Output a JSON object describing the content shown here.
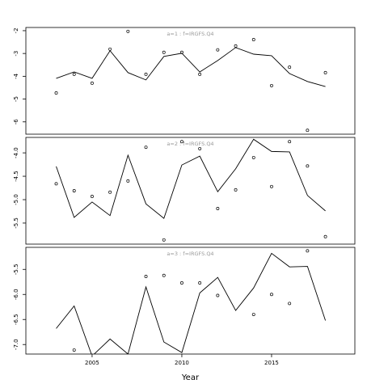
{
  "chart_data": [
    {
      "type": "line",
      "title": "a=1 : f=IRGFS.Q4",
      "x": [
        2003,
        2004,
        2005,
        2006,
        2007,
        2008,
        2009,
        2010,
        2011,
        2012,
        2013,
        2014,
        2015,
        2016,
        2017,
        2018
      ],
      "series": [
        {
          "style": "line",
          "color": "#000000",
          "values": [
            -4.09,
            -3.81,
            -4.09,
            -2.88,
            -3.84,
            -4.16,
            -3.13,
            -2.99,
            -3.81,
            -3.31,
            -2.74,
            -3.03,
            -3.1,
            -3.88,
            -4.23,
            -4.45
          ]
        },
        {
          "style": "points",
          "color": "#000000",
          "values": [
            -4.73,
            -3.91,
            -4.3,
            -2.81,
            -2.03,
            -3.91,
            -2.95,
            -2.95,
            -3.91,
            -2.84,
            -2.67,
            -2.39,
            -4.41,
            -3.6,
            -6.37,
            -3.84
          ]
        }
      ],
      "xlim": [
        2001.31,
        2019.64
      ],
      "ylim": [
        -6.54,
        -1.86
      ],
      "yticks": [
        -2,
        -3,
        -4,
        -5,
        -6
      ]
    },
    {
      "type": "line",
      "title": "a=2 : f=IRGFS.Q4",
      "x": [
        2003,
        2004,
        2005,
        2006,
        2007,
        2008,
        2009,
        2010,
        2011,
        2012,
        2013,
        2014,
        2015,
        2016,
        2017,
        2018
      ],
      "series": [
        {
          "style": "line",
          "color": "#000000",
          "values": [
            -4.29,
            -5.38,
            -5.05,
            -5.34,
            -4.05,
            -5.09,
            -5.4,
            -4.26,
            -4.07,
            -4.83,
            -4.34,
            -3.71,
            -3.97,
            -3.98,
            -4.91,
            -5.24
          ]
        },
        {
          "style": "points",
          "color": "#000000",
          "values": [
            -4.66,
            -4.81,
            -4.93,
            -4.84,
            -4.6,
            -3.88,
            -5.86,
            -3.76,
            -3.91,
            -5.19,
            -4.79,
            -4.1,
            -4.72,
            -3.76,
            -4.28,
            -5.79
          ]
        }
      ],
      "xlim": [
        2001.31,
        2019.64
      ],
      "ylim": [
        -5.95,
        -3.67
      ],
      "yticks": [
        {
          "value": -4,
          "label": "-4.0"
        },
        -4.5,
        {
          "value": -5,
          "label": "-5.0"
        },
        -5.5
      ]
    },
    {
      "type": "line",
      "title": "a=3 : f=IRGFS.Q4",
      "xlabel": "Year",
      "x": [
        2003,
        2004,
        2005,
        2006,
        2007,
        2008,
        2009,
        2010,
        2011,
        2012,
        2013,
        2014,
        2015,
        2016,
        2017,
        2018
      ],
      "series": [
        {
          "style": "line",
          "color": "#000000",
          "values": [
            -6.68,
            -6.23,
            -7.23,
            -6.89,
            -7.19,
            -5.85,
            -6.95,
            -7.16,
            -5.97,
            -5.66,
            -6.32,
            -5.87,
            -5.18,
            -5.45,
            -5.44,
            -6.52
          ]
        },
        {
          "style": "points",
          "color": "#000000",
          "values": [
            null,
            -7.11,
            null,
            null,
            null,
            -5.64,
            -5.62,
            -5.77,
            -5.77,
            -6.02,
            null,
            -6.4,
            -6.0,
            -6.18,
            -5.13,
            null
          ]
        }
      ],
      "xlim": [
        2001.31,
        2019.64
      ],
      "ylim": [
        -7.19,
        -5.06
      ],
      "yticks": [
        -5.5,
        {
          "value": -6,
          "label": "-6.0"
        },
        -6.5,
        {
          "value": -7,
          "label": "-7.0"
        }
      ],
      "xticks": [
        2005,
        2010,
        2015
      ]
    }
  ]
}
